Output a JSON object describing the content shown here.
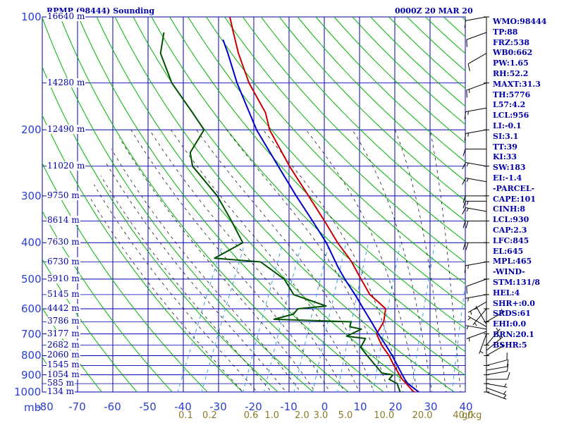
{
  "header": {
    "title": "RPMP (98444) Sounding",
    "datetime": "0000Z 20 MAR 20"
  },
  "side_panel": [
    "WMO:98444",
    "TP:88",
    "FRZ:538",
    "WB0:662",
    "PW:1.65",
    "RH:52.2",
    "MAXT:31.3",
    "TH:5776",
    "L57:4.2",
    "LCL:956",
    "LI:-0.1",
    "SI:3.1",
    "TT:39",
    "KI:33",
    "SW:183",
    "EI:-1.4",
    "-PARCEL-",
    "CAPE:101",
    "CINH:8",
    "LCL:930",
    "CAP:2.3",
    "LFC:845",
    "EL:645",
    "MPL:465",
    "-WIND-",
    "STM:131/8",
    "HEL:4",
    "SHR+:0.0",
    "SRDS:61",
    "EHI:0.0",
    "BRN:20.1",
    "BSHR:5"
  ],
  "colors": {
    "grid": "#0000b4",
    "dry_adiabat": "#00b400",
    "moist_adiabat": "#1a1a1a",
    "mixing_ratio": "#3aa0e0",
    "temperature": "#c80000",
    "dewpoint": "#005000",
    "parcel": "#0000c8",
    "text": "#0000aa",
    "mixing_label": "#8a7a28"
  },
  "chart_data": {
    "type": "line",
    "diagram": "skew-T log-P",
    "xlabel": "",
    "ylabel": "mb",
    "pressure_range": [
      1000,
      100
    ],
    "temperature_range": [
      -80,
      40
    ],
    "pressure_ticks": [
      100,
      200,
      300,
      400,
      500,
      600,
      700,
      800,
      900,
      1000
    ],
    "temperature_ticks": [
      -80,
      -70,
      -60,
      -50,
      -40,
      -30,
      -20,
      -10,
      0,
      10,
      20,
      30,
      40
    ],
    "pressure_axis_label": "mb",
    "mixing_ratio_ticks": [
      "0.1",
      "0.2",
      "0.6",
      "1.0",
      "2.0",
      "3.0",
      "5.0",
      "10.0",
      "20.0",
      "40.0"
    ],
    "mixing_ratio_unit": "g/kg",
    "height_labels": [
      {
        "p": 100,
        "label": "16640 m"
      },
      {
        "p": 150,
        "label": "14280 m"
      },
      {
        "p": 200,
        "label": "12490 m"
      },
      {
        "p": 250,
        "label": "11020 m"
      },
      {
        "p": 300,
        "label": "9750 m"
      },
      {
        "p": 350,
        "label": "8614 m"
      },
      {
        "p": 400,
        "label": "7630 m"
      },
      {
        "p": 450,
        "label": "6730 m"
      },
      {
        "p": 500,
        "label": "5910 m"
      },
      {
        "p": 550,
        "label": "5145 m"
      },
      {
        "p": 600,
        "label": "4442 m"
      },
      {
        "p": 650,
        "label": "3786 m"
      },
      {
        "p": 700,
        "label": "3177 m"
      },
      {
        "p": 750,
        "label": "2682 m"
      },
      {
        "p": 800,
        "label": "2060 m"
      },
      {
        "p": 850,
        "label": "1545 m"
      },
      {
        "p": 900,
        "label": "1054 m"
      },
      {
        "p": 950,
        "label": "585 m"
      },
      {
        "p": 1000,
        "label": "134 m"
      }
    ],
    "series": [
      {
        "name": "Temperature",
        "points": [
          {
            "p": 1005,
            "t": 27.5
          },
          {
            "p": 1000,
            "t": 25.4
          },
          {
            "p": 925,
            "t": 20.3
          },
          {
            "p": 850,
            "t": 16.0
          },
          {
            "p": 800,
            "t": 13.2
          },
          {
            "p": 750,
            "t": 9.6
          },
          {
            "p": 700,
            "t": 6.6
          },
          {
            "p": 680,
            "t": 6.7
          },
          {
            "p": 650,
            "t": 6.9
          },
          {
            "p": 600,
            "t": 5.6
          },
          {
            "p": 575,
            "t": 2.5
          },
          {
            "p": 550,
            "t": -0.9
          },
          {
            "p": 500,
            "t": -5.6
          },
          {
            "p": 450,
            "t": -10.7
          },
          {
            "p": 440,
            "t": -11.9
          },
          {
            "p": 400,
            "t": -17.4
          },
          {
            "p": 350,
            "t": -24.2
          },
          {
            "p": 300,
            "t": -32.3
          },
          {
            "p": 250,
            "t": -41.9
          },
          {
            "p": 200,
            "t": -52.7
          },
          {
            "p": 180,
            "t": -56.3
          },
          {
            "p": 150,
            "t": -65.2
          },
          {
            "p": 125,
            "t": -72.4
          },
          {
            "p": 110,
            "t": -76.8
          },
          {
            "p": 100,
            "t": -80.0
          }
        ]
      },
      {
        "name": "Dewpoint",
        "points": [
          {
            "p": 1005,
            "t": 22.0
          },
          {
            "p": 1000,
            "t": 21.5
          },
          {
            "p": 950,
            "t": 19.5
          },
          {
            "p": 925,
            "t": 16.6
          },
          {
            "p": 900,
            "t": 17.0
          },
          {
            "p": 890,
            "t": 13.6
          },
          {
            "p": 850,
            "t": 10.8
          },
          {
            "p": 800,
            "t": 7.0
          },
          {
            "p": 760,
            "t": 4.0
          },
          {
            "p": 720,
            "t": 4.1
          },
          {
            "p": 710,
            "t": -1.6
          },
          {
            "p": 680,
            "t": 1.6
          },
          {
            "p": 670,
            "t": -2.0
          },
          {
            "p": 650,
            "t": -2.4
          },
          {
            "p": 640,
            "t": -24.6
          },
          {
            "p": 620,
            "t": -19.8
          },
          {
            "p": 600,
            "t": -19.3
          },
          {
            "p": 590,
            "t": -11.7
          },
          {
            "p": 550,
            "t": -22.5
          },
          {
            "p": 500,
            "t": -27.4
          },
          {
            "p": 450,
            "t": -36.5
          },
          {
            "p": 440,
            "t": -50.1
          },
          {
            "p": 400,
            "t": -44.3
          },
          {
            "p": 350,
            "t": -50.6
          },
          {
            "p": 300,
            "t": -58.2
          },
          {
            "p": 250,
            "t": -69.4
          },
          {
            "p": 230,
            "t": -72.0
          },
          {
            "p": 200,
            "t": -71.3
          },
          {
            "p": 180,
            "t": -77.0
          },
          {
            "p": 150,
            "t": -87.1
          },
          {
            "p": 125,
            "t": -94.5
          },
          {
            "p": 110,
            "t": -96.5
          }
        ]
      },
      {
        "name": "Parcel",
        "points": [
          {
            "p": 1005,
            "t": 27.5
          },
          {
            "p": 1000,
            "t": 26.8
          },
          {
            "p": 950,
            "t": 22.5
          },
          {
            "p": 930,
            "t": 21.3
          },
          {
            "p": 900,
            "t": 19.7
          },
          {
            "p": 845,
            "t": 16.7
          },
          {
            "p": 800,
            "t": 14.1
          },
          {
            "p": 750,
            "t": 10.8
          },
          {
            "p": 700,
            "t": 7.1
          },
          {
            "p": 650,
            "t": 3.4
          },
          {
            "p": 600,
            "t": -0.7
          },
          {
            "p": 550,
            "t": -5.1
          },
          {
            "p": 500,
            "t": -10.2
          },
          {
            "p": 465,
            "t": -13.8
          },
          {
            "p": 400,
            "t": -20.6
          },
          {
            "p": 350,
            "t": -27.6
          },
          {
            "p": 300,
            "t": -35.8
          },
          {
            "p": 250,
            "t": -45.1
          },
          {
            "p": 200,
            "t": -56.4
          },
          {
            "p": 150,
            "t": -68.6
          },
          {
            "p": 125,
            "t": -75.4
          },
          {
            "p": 115,
            "t": -78.7
          }
        ]
      }
    ],
    "wind_barbs": [
      {
        "p": 1000,
        "dir": 110,
        "spd": 5
      },
      {
        "p": 975,
        "dir": 110,
        "spd": 5
      },
      {
        "p": 950,
        "dir": 100,
        "spd": 5
      },
      {
        "p": 925,
        "dir": 90,
        "spd": 10
      },
      {
        "p": 900,
        "dir": 80,
        "spd": 10
      },
      {
        "p": 875,
        "dir": 80,
        "spd": 10
      },
      {
        "p": 850,
        "dir": 75,
        "spd": 10
      },
      {
        "p": 800,
        "dir": 60,
        "spd": 5
      },
      {
        "p": 775,
        "dir": 50,
        "spd": 5
      },
      {
        "p": 750,
        "dir": 40,
        "spd": 5
      },
      {
        "p": 700,
        "dir": 200,
        "spd": 5
      },
      {
        "p": 690,
        "dir": 250,
        "spd": 5
      },
      {
        "p": 680,
        "dir": 280,
        "spd": 5
      },
      {
        "p": 670,
        "dir": 300,
        "spd": 5
      },
      {
        "p": 660,
        "dir": 330,
        "spd": 5
      },
      {
        "p": 650,
        "dir": 60,
        "spd": 5
      },
      {
        "p": 600,
        "dir": 220,
        "spd": 5
      },
      {
        "p": 575,
        "dir": 240,
        "spd": 5
      },
      {
        "p": 550,
        "dir": 260,
        "spd": 5
      },
      {
        "p": 500,
        "dir": 250,
        "spd": 10
      },
      {
        "p": 450,
        "dir": 260,
        "spd": 15
      },
      {
        "p": 400,
        "dir": 270,
        "spd": 20
      },
      {
        "p": 350,
        "dir": 270,
        "spd": 20
      },
      {
        "p": 330,
        "dir": 280,
        "spd": 15
      },
      {
        "p": 310,
        "dir": 270,
        "spd": 15
      },
      {
        "p": 300,
        "dir": 270,
        "spd": 10
      },
      {
        "p": 275,
        "dir": 280,
        "spd": 15
      },
      {
        "p": 250,
        "dir": 280,
        "spd": 15
      },
      {
        "p": 225,
        "dir": 270,
        "spd": 10
      },
      {
        "p": 200,
        "dir": 260,
        "spd": 15
      },
      {
        "p": 175,
        "dir": 260,
        "spd": 15
      },
      {
        "p": 150,
        "dir": 250,
        "spd": 15
      },
      {
        "p": 125,
        "dir": 240,
        "spd": 10
      },
      {
        "p": 110,
        "dir": 250,
        "spd": 10
      },
      {
        "p": 100,
        "dir": 260,
        "spd": 10
      }
    ]
  }
}
